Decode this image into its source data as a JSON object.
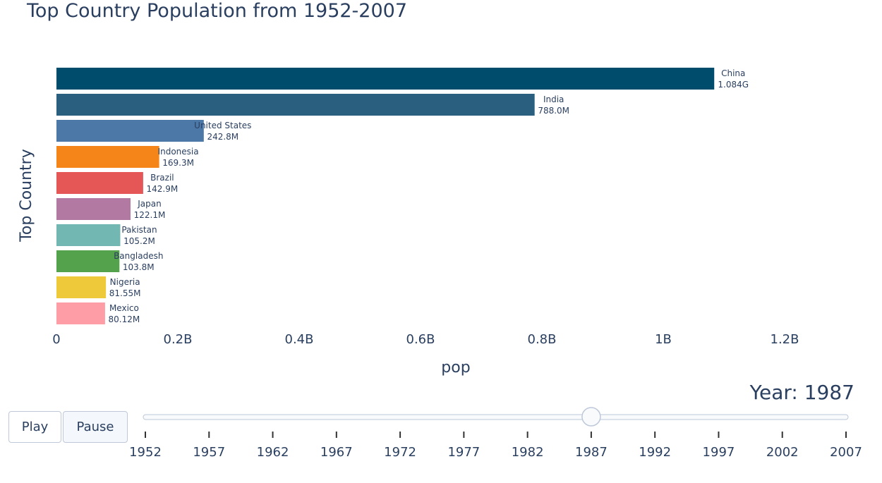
{
  "chart_data": {
    "type": "bar",
    "orientation": "horizontal",
    "title": "Top Country Population from 1952-2007",
    "xlabel": "pop",
    "ylabel": "Top Country",
    "xlim": [
      0,
      1300000000
    ],
    "x_ticks": [
      {
        "value": 0,
        "label": "0"
      },
      {
        "value": 200000000,
        "label": "0.2B"
      },
      {
        "value": 400000000,
        "label": "0.4B"
      },
      {
        "value": 600000000,
        "label": "0.6B"
      },
      {
        "value": 800000000,
        "label": "0.8B"
      },
      {
        "value": 1000000000,
        "label": "1B"
      },
      {
        "value": 1200000000,
        "label": "1.2B"
      }
    ],
    "grid": false,
    "bars": [
      {
        "category": "China",
        "value": 1084000000,
        "label": "1.084G",
        "color": "#004c6d"
      },
      {
        "category": "India",
        "value": 788000000,
        "label": "788.0M",
        "color": "#2a5f80"
      },
      {
        "category": "United States",
        "value": 242800000,
        "label": "242.8M",
        "color": "#4c78a8"
      },
      {
        "category": "Indonesia",
        "value": 169300000,
        "label": "169.3M",
        "color": "#f58518"
      },
      {
        "category": "Brazil",
        "value": 142900000,
        "label": "142.9M",
        "color": "#e45756"
      },
      {
        "category": "Japan",
        "value": 122100000,
        "label": "122.1M",
        "color": "#b279a2"
      },
      {
        "category": "Pakistan",
        "value": 105200000,
        "label": "105.2M",
        "color": "#72b7b2"
      },
      {
        "category": "Bangladesh",
        "value": 103800000,
        "label": "103.8M",
        "color": "#54a24b"
      },
      {
        "category": "Nigeria",
        "value": 81550000,
        "label": "81.55M",
        "color": "#eeca3b"
      },
      {
        "category": "Mexico",
        "value": 80120000,
        "label": "80.12M",
        "color": "#ff9da6"
      }
    ]
  },
  "controls": {
    "play_label": "Play",
    "pause_label": "Pause"
  },
  "slider": {
    "prefix": "Year: ",
    "current": "1987",
    "current_label": "Year: 1987",
    "steps": [
      "1952",
      "1957",
      "1962",
      "1967",
      "1972",
      "1977",
      "1982",
      "1987",
      "1992",
      "1997",
      "2002",
      "2007"
    ],
    "current_index": 7
  }
}
